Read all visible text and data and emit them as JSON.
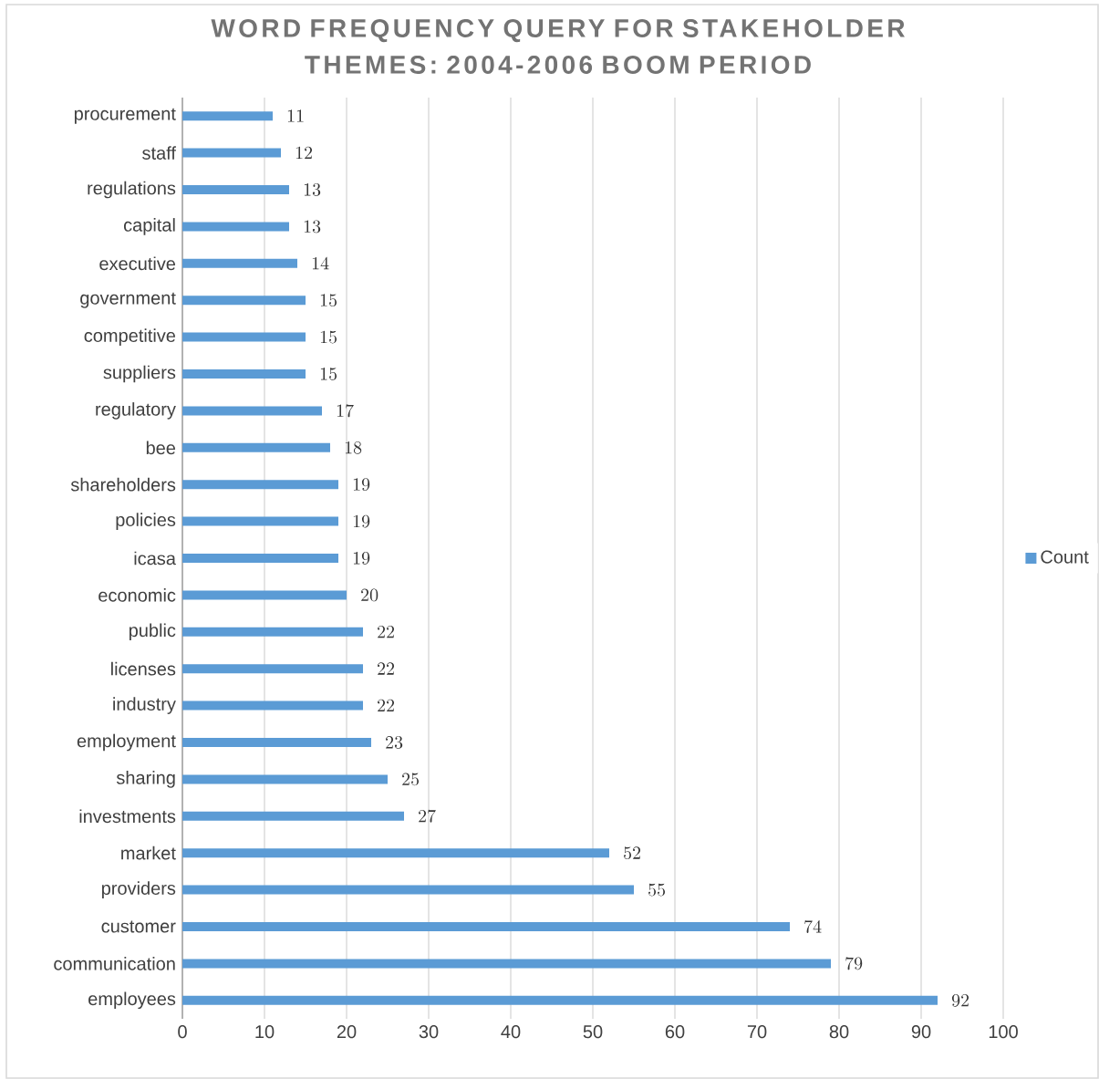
{
  "chart_data": {
    "type": "bar",
    "orientation": "horizontal",
    "title": "WORD FREQUENCY QUERY FOR STAKEHOLDER THEMES: 2004-2006 BOOM PERIOD",
    "categories": [
      "procurement",
      "staff",
      "regulations",
      "capital",
      "executive",
      "government",
      "competitive",
      "suppliers",
      "regulatory",
      "bee",
      "shareholders",
      "policies",
      "icasa",
      "economic",
      "public",
      "licenses",
      "industry",
      "employment",
      "sharing",
      "investments",
      "market",
      "providers",
      "customer",
      "communication",
      "employees"
    ],
    "series": [
      {
        "name": "Count",
        "color": "#5b9bd5",
        "values": [
          11,
          12,
          13,
          13,
          14,
          15,
          15,
          15,
          17,
          18,
          19,
          19,
          19,
          20,
          22,
          22,
          22,
          23,
          25,
          27,
          52,
          55,
          74,
          79,
          92
        ]
      }
    ],
    "xlim": [
      0,
      100
    ],
    "xticks": [
      0,
      10,
      20,
      30,
      40,
      50,
      60,
      70,
      80,
      90,
      100
    ],
    "grid": "x",
    "legend": "right",
    "data_labels": true
  }
}
